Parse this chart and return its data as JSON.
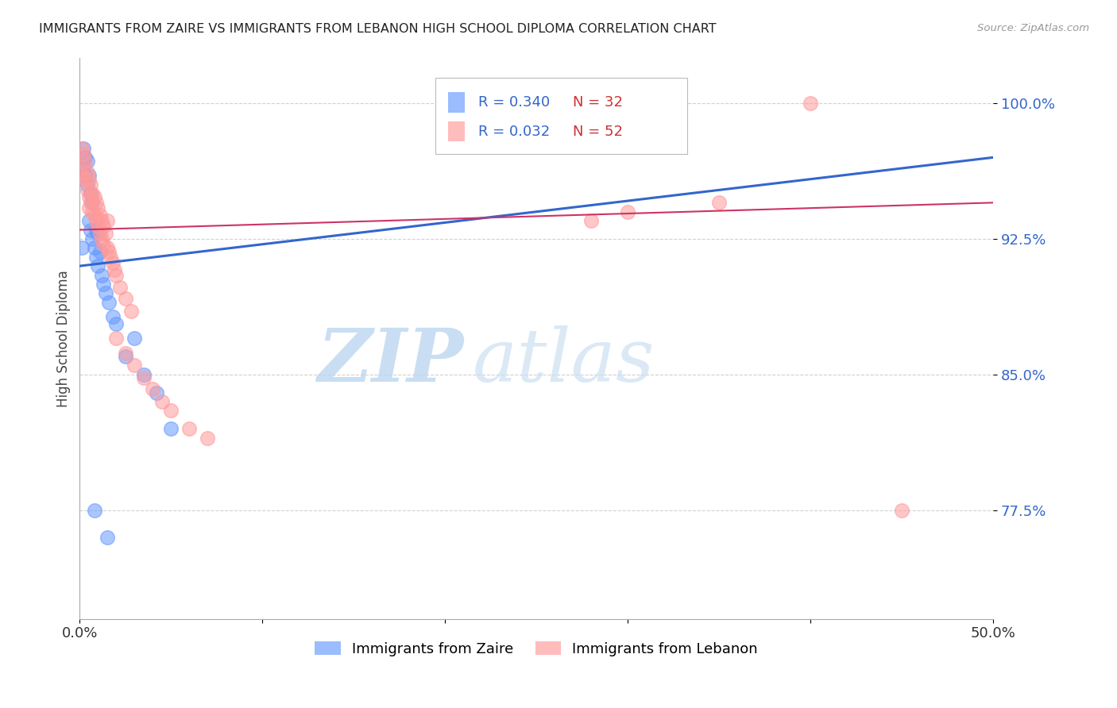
{
  "title": "IMMIGRANTS FROM ZAIRE VS IMMIGRANTS FROM LEBANON HIGH SCHOOL DIPLOMA CORRELATION CHART",
  "source": "Source: ZipAtlas.com",
  "ylabel": "High School Diploma",
  "yticks": [
    0.775,
    0.85,
    0.925,
    1.0
  ],
  "ytick_labels": [
    "77.5%",
    "85.0%",
    "92.5%",
    "100.0%"
  ],
  "xlim": [
    0.0,
    0.5
  ],
  "ylim": [
    0.715,
    1.025
  ],
  "zaire_color": "#6699ff",
  "lebanon_color": "#ff9999",
  "zaire_line_color": "#3366cc",
  "lebanon_line_color": "#cc3366",
  "zaire_R": 0.34,
  "zaire_N": 32,
  "lebanon_R": 0.032,
  "lebanon_N": 52,
  "watermark_zip": "ZIP",
  "watermark_atlas": "atlas",
  "zaire_x": [
    0.001,
    0.002,
    0.002,
    0.003,
    0.003,
    0.004,
    0.004,
    0.005,
    0.005,
    0.006,
    0.006,
    0.007,
    0.007,
    0.008,
    0.009,
    0.009,
    0.01,
    0.01,
    0.011,
    0.012,
    0.013,
    0.014,
    0.016,
    0.018,
    0.02,
    0.025,
    0.03,
    0.035,
    0.042,
    0.05,
    0.015,
    0.008
  ],
  "zaire_y": [
    0.92,
    0.975,
    0.965,
    0.97,
    0.96,
    0.968,
    0.955,
    0.96,
    0.935,
    0.95,
    0.93,
    0.925,
    0.945,
    0.92,
    0.915,
    0.93,
    0.928,
    0.91,
    0.918,
    0.905,
    0.9,
    0.895,
    0.89,
    0.882,
    0.878,
    0.86,
    0.87,
    0.85,
    0.84,
    0.82,
    0.76,
    0.775
  ],
  "lebanon_x": [
    0.001,
    0.001,
    0.002,
    0.002,
    0.003,
    0.003,
    0.004,
    0.004,
    0.005,
    0.005,
    0.005,
    0.006,
    0.006,
    0.007,
    0.007,
    0.008,
    0.008,
    0.009,
    0.009,
    0.01,
    0.01,
    0.011,
    0.011,
    0.012,
    0.012,
    0.013,
    0.013,
    0.014,
    0.015,
    0.015,
    0.016,
    0.017,
    0.018,
    0.019,
    0.02,
    0.022,
    0.025,
    0.028,
    0.02,
    0.025,
    0.03,
    0.035,
    0.04,
    0.045,
    0.05,
    0.06,
    0.07,
    0.28,
    0.3,
    0.35,
    0.4,
    0.45
  ],
  "lebanon_y": [
    0.975,
    0.96,
    0.972,
    0.965,
    0.968,
    0.958,
    0.962,
    0.952,
    0.958,
    0.948,
    0.942,
    0.955,
    0.945,
    0.95,
    0.94,
    0.948,
    0.938,
    0.945,
    0.935,
    0.942,
    0.932,
    0.938,
    0.928,
    0.935,
    0.925,
    0.932,
    0.922,
    0.928,
    0.935,
    0.92,
    0.918,
    0.915,
    0.912,
    0.908,
    0.905,
    0.898,
    0.892,
    0.885,
    0.87,
    0.862,
    0.855,
    0.848,
    0.842,
    0.835,
    0.83,
    0.82,
    0.815,
    0.935,
    0.94,
    0.945,
    1.0,
    0.775
  ],
  "zaire_line_x0": 0.0,
  "zaire_line_y0": 0.91,
  "zaire_line_x1": 0.5,
  "zaire_line_y1": 0.97,
  "lebanon_line_x0": 0.0,
  "lebanon_line_y0": 0.93,
  "lebanon_line_x1": 0.5,
  "lebanon_line_y1": 0.945
}
